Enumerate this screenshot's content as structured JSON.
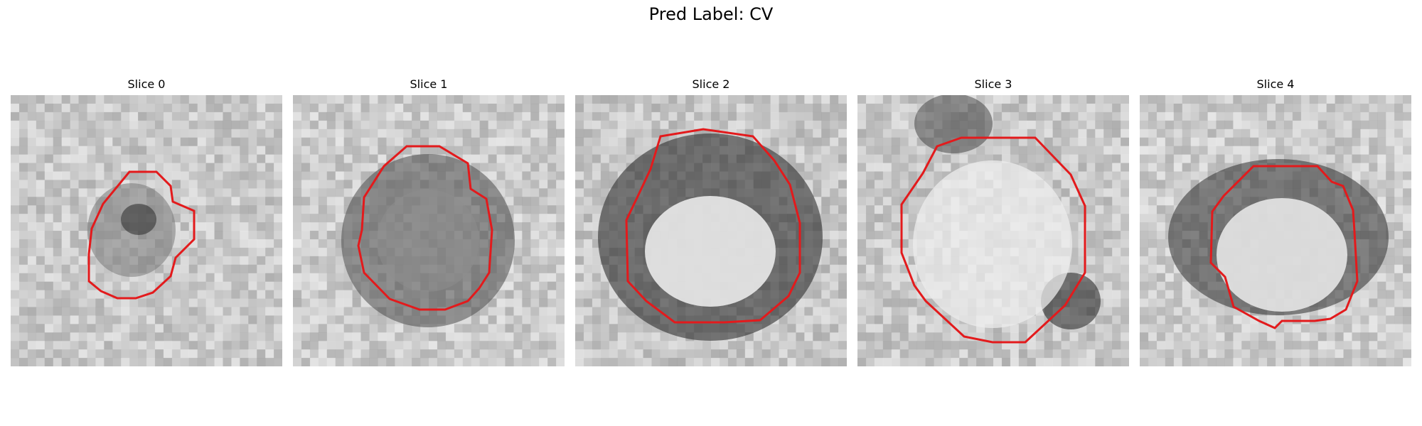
{
  "figure": {
    "title": "Pred Label: CV"
  },
  "panels": [
    {
      "label": "Slice 0",
      "contour_color": "#e31a1c"
    },
    {
      "label": "Slice 1",
      "contour_color": "#e31a1c"
    },
    {
      "label": "Slice 2",
      "contour_color": "#e31a1c"
    },
    {
      "label": "Slice 3",
      "contour_color": "#e31a1c"
    },
    {
      "label": "Slice 4",
      "contour_color": "#e31a1c"
    }
  ]
}
